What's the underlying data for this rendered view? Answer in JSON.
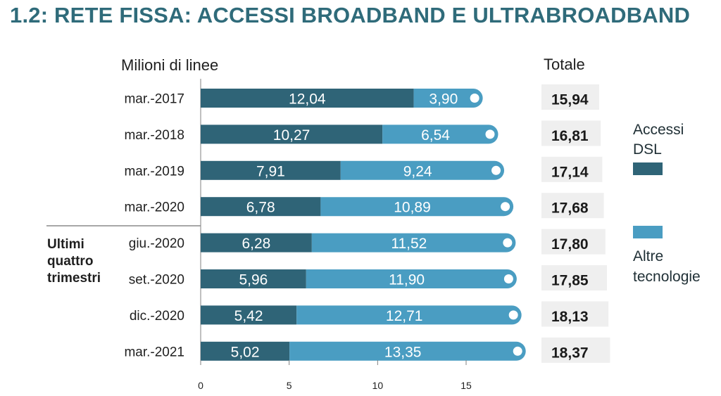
{
  "page": {
    "title": "1.2: RETE FISSA: ACCESSI BROADBAND E ULTRABROADBAND"
  },
  "colors": {
    "dsl": "#2f6477",
    "altre": "#4a9dc2",
    "total_box": "#efefef",
    "axis": "#808080"
  },
  "chart_data": {
    "type": "bar",
    "orientation": "horizontal",
    "stacked": true,
    "ylabel": "Milioni di linee",
    "total_header": "Totale",
    "categories": [
      "mar.-2017",
      "mar.-2018",
      "mar.-2019",
      "mar.-2020",
      "giu.-2020",
      "set.-2020",
      "dic.-2020",
      "mar.-2021"
    ],
    "series": [
      {
        "name": "Accessi DSL",
        "values": [
          12.04,
          10.27,
          7.91,
          6.78,
          6.28,
          5.96,
          5.42,
          5.02
        ],
        "labels": [
          "12,04",
          "10,27",
          "7,91",
          "6,78",
          "6,28",
          "5,96",
          "5,42",
          "5,02"
        ]
      },
      {
        "name": "Altre tecnologie",
        "values": [
          3.9,
          6.54,
          9.24,
          10.89,
          11.52,
          11.9,
          12.71,
          13.35
        ],
        "labels": [
          "3,90",
          "6,54",
          "9,24",
          "10,89",
          "11,52",
          "11,90",
          "12,71",
          "13,35"
        ]
      }
    ],
    "totals": [
      "15,94",
      "16,81",
      "17,14",
      "17,68",
      "17,80",
      "17,85",
      "18,13",
      "18,37"
    ],
    "xticks": [
      "0",
      "5",
      "10",
      "15"
    ],
    "xlim": [
      0,
      18.5
    ],
    "group_label": "Ultimi quattro trimestri",
    "legend": [
      {
        "name": "Accessi DSL",
        "lines": [
          "Accessi",
          "DSL"
        ]
      },
      {
        "name": "Altre tecnologie",
        "lines": [
          "Altre",
          "tecnologie"
        ]
      }
    ],
    "legend_position": "right"
  }
}
